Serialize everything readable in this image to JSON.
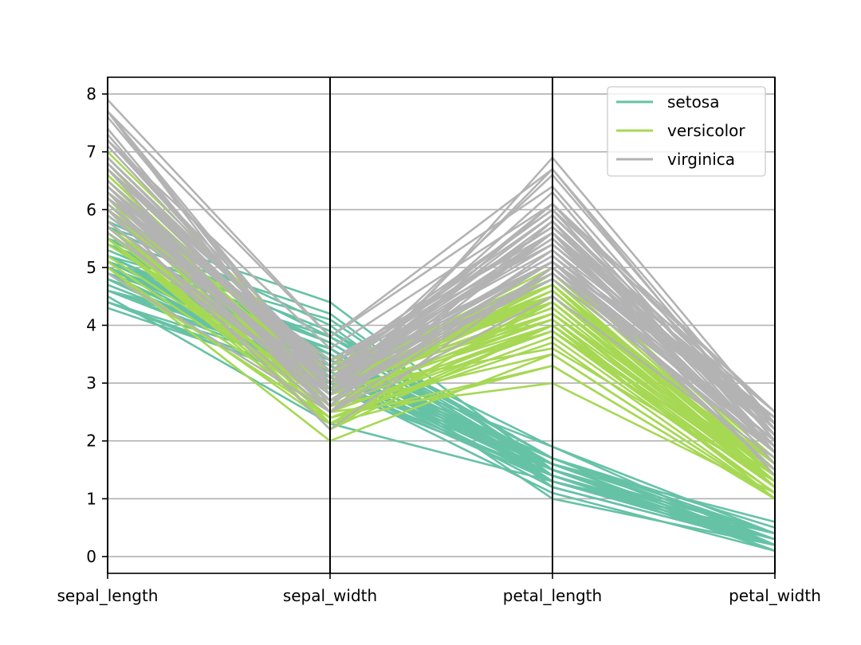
{
  "chart_data": {
    "type": "parallel_coordinates",
    "title": "",
    "axes": [
      "sepal_length",
      "sepal_width",
      "petal_length",
      "petal_width"
    ],
    "yticks": [
      0,
      1,
      2,
      3,
      4,
      5,
      6,
      7,
      8
    ],
    "ylim": [
      -0.29,
      8.29
    ],
    "grid": true,
    "legend_position": "top-right",
    "classes": [
      {
        "name": "setosa",
        "color": "#66c2a5",
        "lines": [
          [
            5.1,
            3.5,
            1.4,
            0.2
          ],
          [
            4.9,
            3.0,
            1.4,
            0.2
          ],
          [
            4.7,
            3.2,
            1.3,
            0.2
          ],
          [
            4.6,
            3.1,
            1.5,
            0.2
          ],
          [
            5.0,
            3.6,
            1.4,
            0.2
          ],
          [
            5.4,
            3.9,
            1.7,
            0.4
          ],
          [
            4.6,
            3.4,
            1.4,
            0.3
          ],
          [
            5.0,
            3.4,
            1.5,
            0.2
          ],
          [
            4.4,
            2.9,
            1.4,
            0.2
          ],
          [
            4.9,
            3.1,
            1.5,
            0.1
          ],
          [
            5.4,
            3.7,
            1.5,
            0.2
          ],
          [
            4.8,
            3.4,
            1.6,
            0.2
          ],
          [
            4.8,
            3.0,
            1.4,
            0.1
          ],
          [
            4.3,
            3.0,
            1.1,
            0.1
          ],
          [
            5.8,
            4.0,
            1.2,
            0.2
          ],
          [
            5.7,
            4.4,
            1.5,
            0.4
          ],
          [
            5.4,
            3.9,
            1.3,
            0.4
          ],
          [
            5.1,
            3.5,
            1.4,
            0.3
          ],
          [
            5.7,
            3.8,
            1.7,
            0.3
          ],
          [
            5.1,
            3.8,
            1.5,
            0.3
          ],
          [
            5.4,
            3.4,
            1.7,
            0.2
          ],
          [
            5.1,
            3.7,
            1.5,
            0.4
          ],
          [
            4.6,
            3.6,
            1.0,
            0.2
          ],
          [
            5.1,
            3.3,
            1.7,
            0.5
          ],
          [
            4.8,
            3.4,
            1.9,
            0.2
          ],
          [
            5.0,
            3.0,
            1.6,
            0.2
          ],
          [
            5.0,
            3.4,
            1.6,
            0.4
          ],
          [
            5.2,
            3.5,
            1.5,
            0.2
          ],
          [
            5.2,
            3.4,
            1.4,
            0.2
          ],
          [
            4.7,
            3.2,
            1.6,
            0.2
          ],
          [
            4.8,
            3.1,
            1.6,
            0.2
          ],
          [
            5.4,
            3.4,
            1.5,
            0.4
          ],
          [
            5.2,
            4.1,
            1.5,
            0.1
          ],
          [
            5.5,
            4.2,
            1.4,
            0.2
          ],
          [
            4.9,
            3.1,
            1.5,
            0.2
          ],
          [
            5.0,
            3.2,
            1.2,
            0.2
          ],
          [
            5.5,
            3.5,
            1.3,
            0.2
          ],
          [
            4.9,
            3.6,
            1.4,
            0.1
          ],
          [
            4.4,
            3.0,
            1.3,
            0.2
          ],
          [
            5.1,
            3.4,
            1.5,
            0.2
          ],
          [
            5.0,
            3.5,
            1.3,
            0.3
          ],
          [
            4.5,
            2.3,
            1.3,
            0.3
          ],
          [
            4.4,
            3.2,
            1.3,
            0.2
          ],
          [
            5.0,
            3.5,
            1.6,
            0.6
          ],
          [
            5.1,
            3.8,
            1.9,
            0.4
          ],
          [
            4.8,
            3.0,
            1.4,
            0.3
          ],
          [
            5.1,
            3.8,
            1.6,
            0.2
          ],
          [
            4.6,
            3.2,
            1.4,
            0.2
          ],
          [
            5.3,
            3.7,
            1.5,
            0.2
          ],
          [
            5.0,
            3.3,
            1.4,
            0.2
          ]
        ]
      },
      {
        "name": "versicolor",
        "color": "#a6d854",
        "lines": [
          [
            7.0,
            3.2,
            4.7,
            1.4
          ],
          [
            6.4,
            3.2,
            4.5,
            1.5
          ],
          [
            6.9,
            3.1,
            4.9,
            1.5
          ],
          [
            5.5,
            2.3,
            4.0,
            1.3
          ],
          [
            6.5,
            2.8,
            4.6,
            1.5
          ],
          [
            5.7,
            2.8,
            4.5,
            1.3
          ],
          [
            6.3,
            3.3,
            4.7,
            1.6
          ],
          [
            4.9,
            2.4,
            3.3,
            1.0
          ],
          [
            6.6,
            2.9,
            4.6,
            1.3
          ],
          [
            5.2,
            2.7,
            3.9,
            1.4
          ],
          [
            5.0,
            2.0,
            3.5,
            1.0
          ],
          [
            5.9,
            3.0,
            4.2,
            1.5
          ],
          [
            6.0,
            2.2,
            4.0,
            1.0
          ],
          [
            6.1,
            2.9,
            4.7,
            1.4
          ],
          [
            5.6,
            2.9,
            3.6,
            1.3
          ],
          [
            6.7,
            3.1,
            4.4,
            1.4
          ],
          [
            5.6,
            3.0,
            4.5,
            1.5
          ],
          [
            5.8,
            2.7,
            4.1,
            1.0
          ],
          [
            6.2,
            2.2,
            4.5,
            1.5
          ],
          [
            5.6,
            2.5,
            3.9,
            1.1
          ],
          [
            5.9,
            3.2,
            4.8,
            1.8
          ],
          [
            6.1,
            2.8,
            4.0,
            1.3
          ],
          [
            6.3,
            2.5,
            4.9,
            1.5
          ],
          [
            6.1,
            2.8,
            4.7,
            1.2
          ],
          [
            6.4,
            2.9,
            4.3,
            1.3
          ],
          [
            6.6,
            3.0,
            4.4,
            1.4
          ],
          [
            6.8,
            2.8,
            4.8,
            1.4
          ],
          [
            6.7,
            3.0,
            5.0,
            1.7
          ],
          [
            6.0,
            2.9,
            4.5,
            1.5
          ],
          [
            5.7,
            2.6,
            3.5,
            1.0
          ],
          [
            5.5,
            2.4,
            3.8,
            1.1
          ],
          [
            5.5,
            2.4,
            3.7,
            1.0
          ],
          [
            5.8,
            2.7,
            3.9,
            1.2
          ],
          [
            6.0,
            2.7,
            5.1,
            1.6
          ],
          [
            5.4,
            3.0,
            4.5,
            1.5
          ],
          [
            6.0,
            3.4,
            4.5,
            1.6
          ],
          [
            6.7,
            3.1,
            4.7,
            1.5
          ],
          [
            6.3,
            2.3,
            4.4,
            1.3
          ],
          [
            5.6,
            3.0,
            4.1,
            1.3
          ],
          [
            5.5,
            2.5,
            4.0,
            1.3
          ],
          [
            5.5,
            2.6,
            4.4,
            1.2
          ],
          [
            6.1,
            3.0,
            4.6,
            1.4
          ],
          [
            5.8,
            2.6,
            4.0,
            1.2
          ],
          [
            5.0,
            2.3,
            3.3,
            1.0
          ],
          [
            5.6,
            2.7,
            4.2,
            1.3
          ],
          [
            5.7,
            3.0,
            4.2,
            1.2
          ],
          [
            5.7,
            2.9,
            4.2,
            1.3
          ],
          [
            6.2,
            2.9,
            4.3,
            1.3
          ],
          [
            5.1,
            2.5,
            3.0,
            1.1
          ],
          [
            5.7,
            2.8,
            4.1,
            1.3
          ]
        ]
      },
      {
        "name": "virginica",
        "color": "#b3b3b3",
        "lines": [
          [
            6.3,
            3.3,
            6.0,
            2.5
          ],
          [
            5.8,
            2.7,
            5.1,
            1.9
          ],
          [
            7.1,
            3.0,
            5.9,
            2.1
          ],
          [
            6.3,
            2.9,
            5.6,
            1.8
          ],
          [
            6.5,
            3.0,
            5.8,
            2.2
          ],
          [
            7.6,
            3.0,
            6.6,
            2.1
          ],
          [
            4.9,
            2.5,
            4.5,
            1.7
          ],
          [
            7.3,
            2.9,
            6.3,
            1.8
          ],
          [
            6.7,
            2.5,
            5.8,
            1.8
          ],
          [
            7.2,
            3.6,
            6.1,
            2.5
          ],
          [
            6.5,
            3.2,
            5.1,
            2.0
          ],
          [
            6.4,
            2.7,
            5.3,
            1.9
          ],
          [
            6.8,
            3.0,
            5.5,
            2.1
          ],
          [
            5.7,
            2.5,
            5.0,
            2.0
          ],
          [
            5.8,
            2.8,
            5.1,
            2.4
          ],
          [
            6.4,
            3.2,
            5.3,
            2.3
          ],
          [
            6.5,
            3.0,
            5.5,
            1.8
          ],
          [
            7.7,
            3.8,
            6.7,
            2.2
          ],
          [
            7.7,
            2.6,
            6.9,
            2.3
          ],
          [
            6.0,
            2.2,
            5.0,
            1.5
          ],
          [
            6.9,
            3.2,
            5.7,
            2.3
          ],
          [
            5.6,
            2.8,
            4.9,
            2.0
          ],
          [
            7.7,
            2.8,
            6.7,
            2.0
          ],
          [
            6.3,
            2.7,
            4.9,
            1.8
          ],
          [
            6.7,
            3.3,
            5.7,
            2.1
          ],
          [
            7.2,
            3.2,
            6.0,
            1.8
          ],
          [
            6.2,
            2.8,
            4.8,
            1.8
          ],
          [
            6.1,
            3.0,
            4.9,
            1.8
          ],
          [
            6.4,
            2.8,
            5.6,
            2.1
          ],
          [
            7.2,
            3.0,
            5.8,
            1.6
          ],
          [
            7.4,
            2.8,
            6.1,
            1.9
          ],
          [
            7.9,
            3.8,
            6.4,
            2.0
          ],
          [
            6.4,
            2.8,
            5.6,
            2.2
          ],
          [
            6.3,
            2.8,
            5.1,
            1.5
          ],
          [
            6.1,
            2.6,
            5.6,
            1.4
          ],
          [
            7.7,
            3.0,
            6.1,
            2.3
          ],
          [
            6.3,
            3.4,
            5.6,
            2.4
          ],
          [
            6.4,
            3.1,
            5.5,
            1.8
          ],
          [
            6.0,
            3.0,
            4.8,
            1.8
          ],
          [
            6.9,
            3.1,
            5.4,
            2.1
          ],
          [
            6.7,
            3.1,
            5.6,
            2.4
          ],
          [
            6.9,
            3.1,
            5.1,
            2.3
          ],
          [
            5.8,
            2.7,
            5.1,
            1.9
          ],
          [
            6.8,
            3.2,
            5.9,
            2.3
          ],
          [
            6.7,
            3.3,
            5.7,
            2.5
          ],
          [
            6.7,
            3.0,
            5.2,
            2.3
          ],
          [
            6.3,
            2.5,
            5.0,
            1.9
          ],
          [
            6.5,
            3.0,
            5.2,
            2.0
          ],
          [
            6.2,
            3.4,
            5.4,
            2.3
          ],
          [
            5.9,
            3.0,
            5.1,
            1.8
          ]
        ]
      }
    ]
  }
}
